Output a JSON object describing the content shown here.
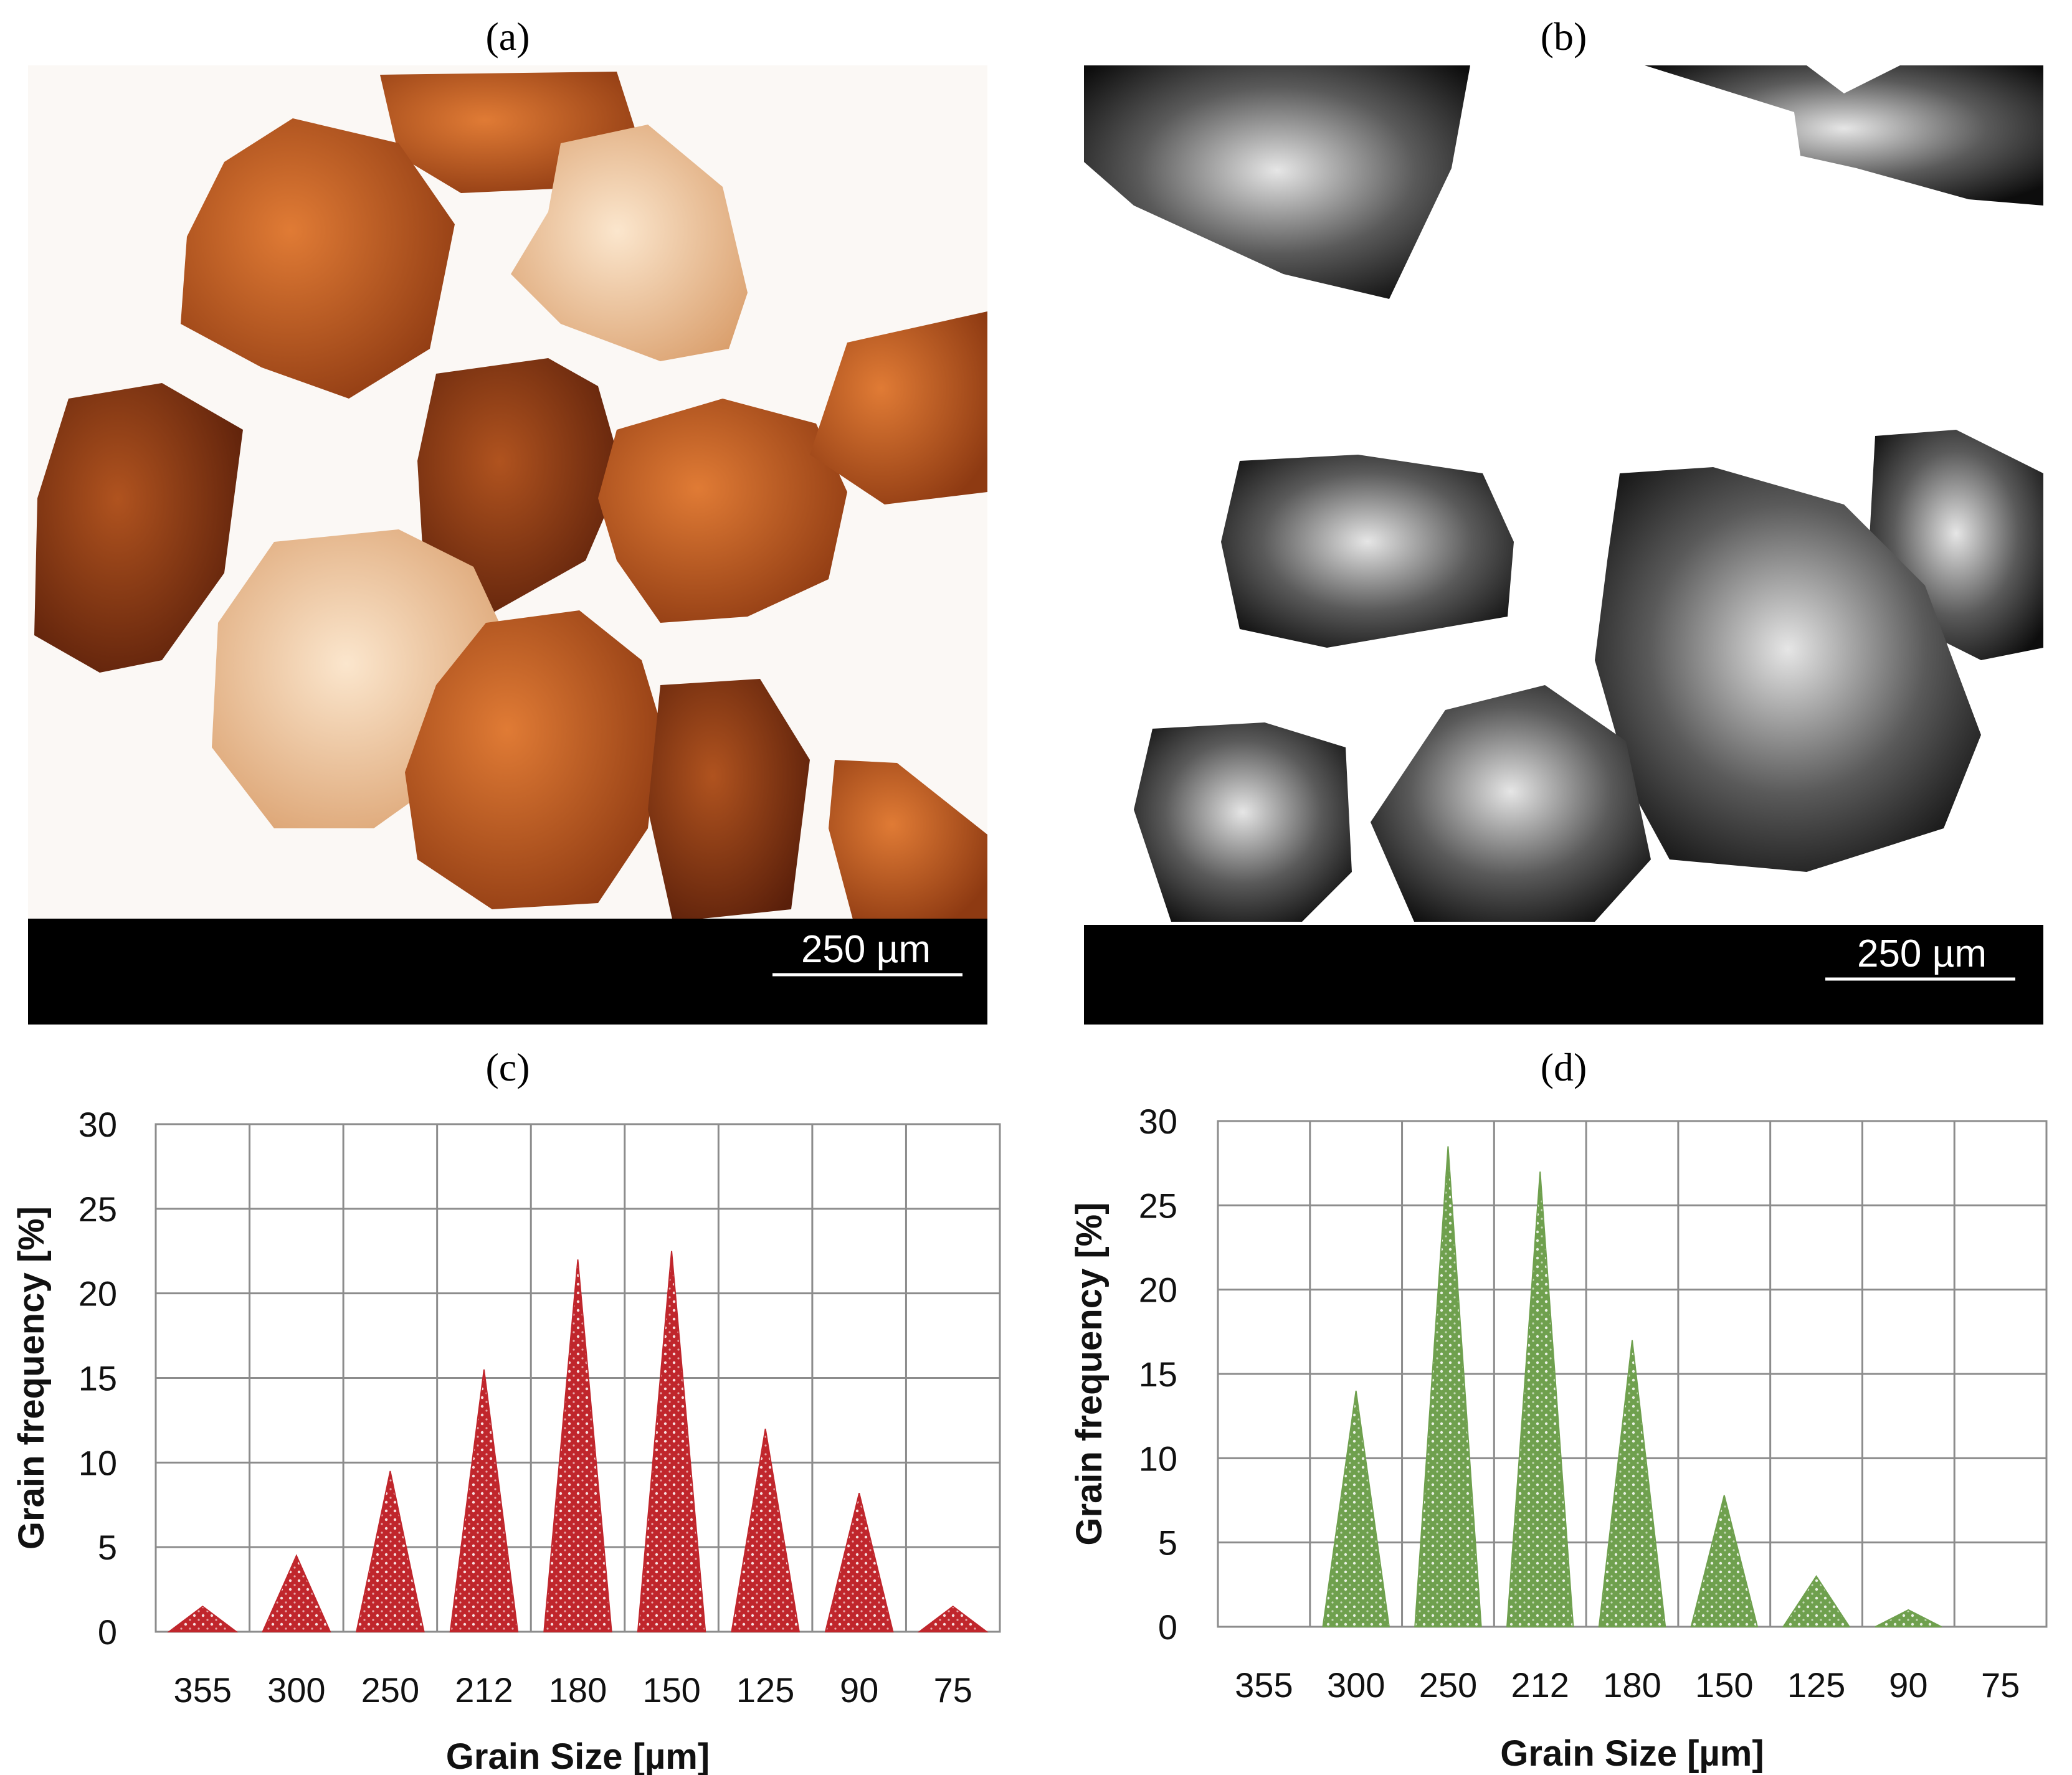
{
  "panels": {
    "a": {
      "label": "(a)",
      "scale_bar": "250 µm"
    },
    "b": {
      "label": "(b)",
      "scale_bar": "250 µm"
    },
    "c": {
      "label": "(c)"
    },
    "d": {
      "label": "(d)"
    }
  },
  "colors": {
    "red_series": "#c0262c",
    "green_series": "#6fa04e",
    "grain_dark": "#7a2d10",
    "grain_mid": "#b8561c",
    "grain_light": "#efc9a0"
  },
  "chart_data": [
    {
      "panel": "c",
      "type": "area",
      "title": "",
      "xlabel": "Grain Size [µm]",
      "ylabel": "Grain frequency  [%]",
      "categories": [
        "355",
        "300",
        "250",
        "212",
        "180",
        "150",
        "125",
        "90",
        "75"
      ],
      "values": [
        1.5,
        4.5,
        9.5,
        15.5,
        22,
        22.5,
        12,
        8.2,
        1.5
      ],
      "yticks": [
        "0",
        "5",
        "10",
        "15",
        "20",
        "25",
        "30"
      ],
      "ylim": [
        0,
        30
      ],
      "grid": true,
      "color": "#c0262c"
    },
    {
      "panel": "d",
      "type": "area",
      "title": "",
      "xlabel": "Grain Size [µm]",
      "ylabel": "Grain frequency  [%]",
      "categories": [
        "355",
        "300",
        "250",
        "212",
        "180",
        "150",
        "125",
        "90",
        "75"
      ],
      "values": [
        0,
        14,
        28.5,
        27,
        17,
        7.8,
        3,
        1,
        0
      ],
      "yticks": [
        "0",
        "5",
        "10",
        "15",
        "20",
        "25",
        "30"
      ],
      "ylim": [
        0,
        30
      ],
      "grid": true,
      "color": "#6fa04e"
    }
  ]
}
